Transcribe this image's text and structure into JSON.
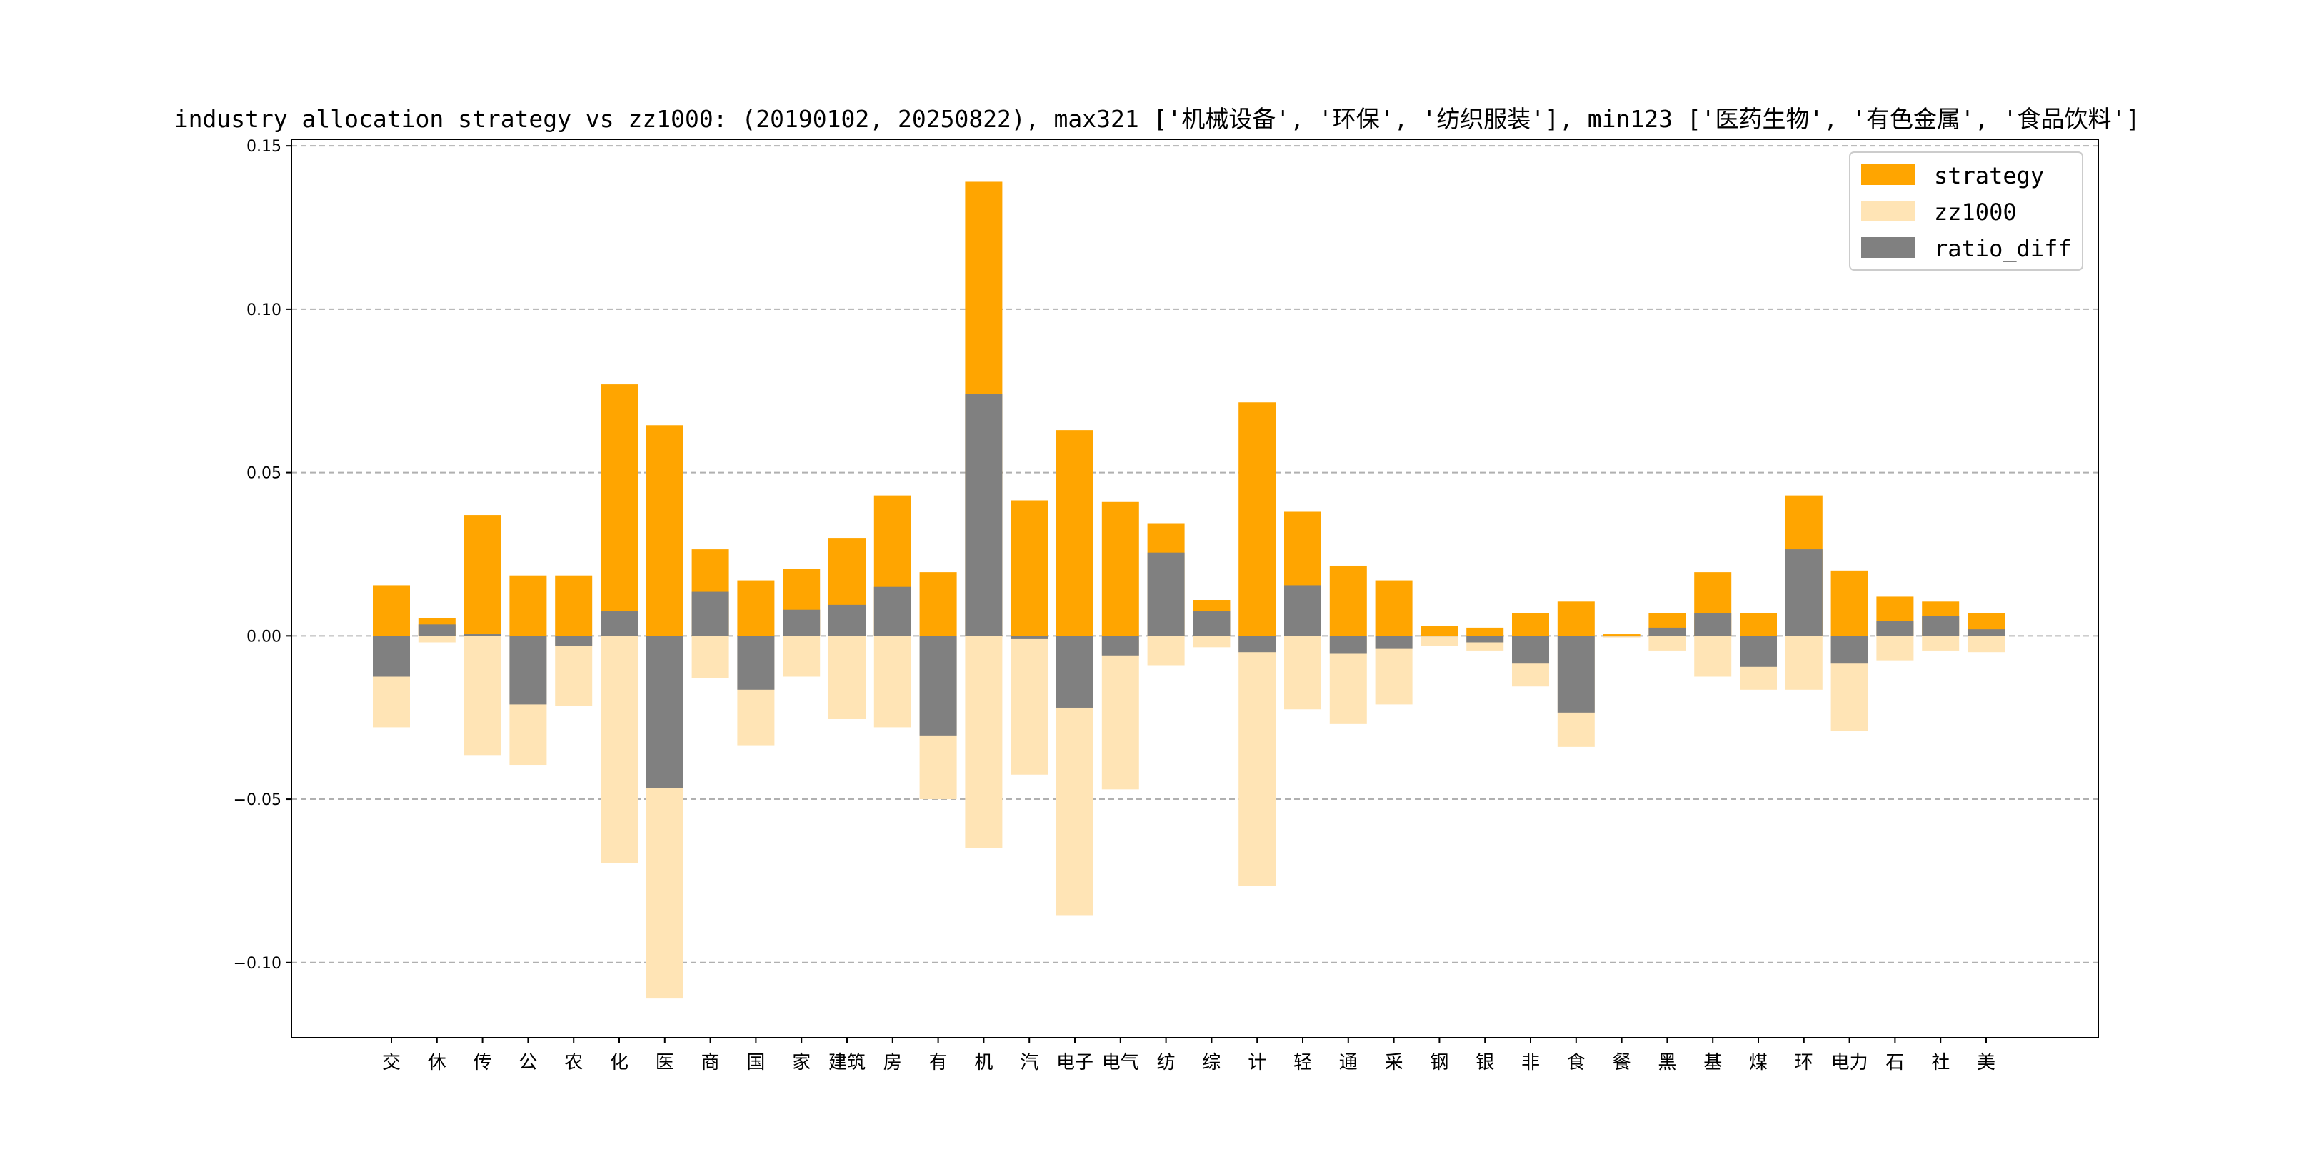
{
  "chart_data": {
    "type": "bar",
    "title": "industry allocation strategy vs zz1000: (20190102, 20250822), max321 ['机械设备', '环保', '纺织服装'], min123 ['医药生物', '有色金属', '食品饮料']",
    "xlabel": "",
    "ylabel": "",
    "ylim": [
      -0.123,
      0.152
    ],
    "yticks": [
      0.15,
      0.1,
      0.05,
      0.0,
      -0.05,
      -0.1
    ],
    "ytick_labels": [
      "0.15",
      "0.10",
      "0.05",
      "0.00",
      "−0.05",
      "−0.10"
    ],
    "grid": "horizontal-dashed",
    "legend_position": "top-right",
    "categories": [
      "交",
      "休",
      "传",
      "公",
      "农",
      "化",
      "医",
      "商",
      "国",
      "家",
      "建筑",
      "房",
      "有",
      "机",
      "汽",
      "电子",
      "电气",
      "纺",
      "综",
      "计",
      "轻",
      "通",
      "采",
      "钢",
      "银",
      "非",
      "食",
      "餐",
      "黑",
      "基",
      "煤",
      "环",
      "电力",
      "石",
      "社",
      "美"
    ],
    "series": [
      {
        "name": "strategy",
        "color": "#FFA500",
        "values": [
          0.0155,
          0.0055,
          0.037,
          0.0185,
          0.0185,
          0.077,
          0.0645,
          0.0265,
          0.017,
          0.0205,
          0.03,
          0.043,
          0.0195,
          0.139,
          0.0415,
          0.063,
          0.041,
          0.0345,
          0.011,
          0.0715,
          0.038,
          0.0215,
          0.017,
          0.003,
          0.0025,
          0.007,
          0.0105,
          0.0005,
          0.007,
          0.0195,
          0.007,
          0.043,
          0.02,
          0.012,
          0.0105,
          0.007
        ]
      },
      {
        "name": "zz1000",
        "color": "#FFE4B5",
        "values": [
          -0.028,
          -0.002,
          -0.0365,
          -0.0395,
          -0.0215,
          -0.0695,
          -0.111,
          -0.013,
          -0.0335,
          -0.0125,
          -0.0255,
          -0.028,
          -0.05,
          -0.065,
          -0.0425,
          -0.0855,
          -0.047,
          -0.009,
          -0.0035,
          -0.0765,
          -0.0225,
          -0.027,
          -0.021,
          -0.003,
          -0.0045,
          -0.0155,
          -0.034,
          -0.0005,
          -0.0045,
          -0.0125,
          -0.0165,
          -0.0165,
          -0.029,
          -0.0075,
          -0.0045,
          -0.005
        ]
      },
      {
        "name": "ratio_diff",
        "color": "#808080",
        "values": [
          -0.0125,
          0.0035,
          0.0005,
          -0.021,
          -0.003,
          0.0075,
          -0.0465,
          0.0135,
          -0.0165,
          0.008,
          0.0095,
          0.015,
          -0.0305,
          0.074,
          -0.001,
          -0.022,
          -0.006,
          0.0255,
          0.0075,
          -0.005,
          0.0155,
          -0.0055,
          -0.004,
          0.0,
          -0.002,
          -0.0085,
          -0.0235,
          0.0,
          0.0025,
          0.007,
          -0.0095,
          0.0265,
          -0.0085,
          0.0045,
          0.006,
          0.002
        ]
      }
    ]
  }
}
